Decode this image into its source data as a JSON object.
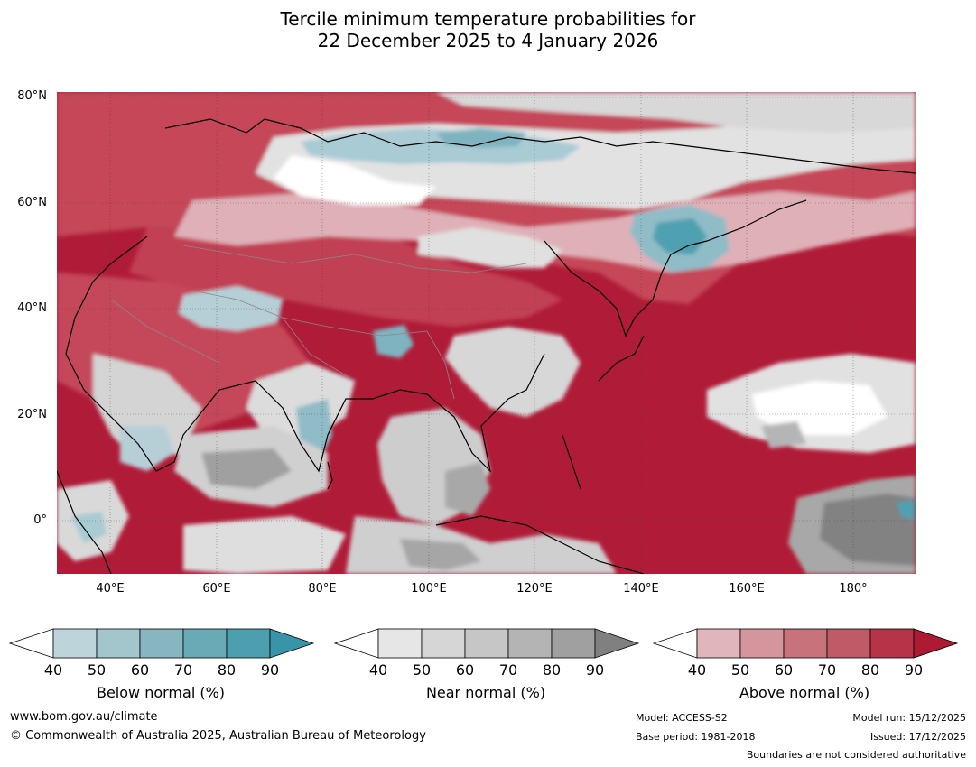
{
  "title": {
    "line1": "Tercile minimum temperature probabilities for",
    "line2": "22 December 2025 to 4 January 2026"
  },
  "map": {
    "projection": "equirectangular",
    "lon_range": [
      30,
      191
    ],
    "lat_range": [
      -10,
      81
    ],
    "colors": {
      "ocean_above": "#b01c38",
      "land_above": "#c74a5b",
      "pale_red": "#e1b3ba",
      "mid_red": "#d68a96",
      "near_light": "#e4e4e4",
      "near_mid": "#c6c6c6",
      "near_dark": "#8a8a8a",
      "below_light": "#b9d1d9",
      "below_mid": "#83b4c1",
      "below_dark": "#4a9eae",
      "coast": "#000000",
      "border": "#888888",
      "grid": "#555555"
    },
    "y_ticks": [
      "80°N",
      "60°N",
      "40°N",
      "20°N",
      "0°"
    ],
    "x_ticks": [
      "40°E",
      "60°E",
      "80°E",
      "100°E",
      "120°E",
      "140°E",
      "160°E",
      "180°"
    ]
  },
  "colorbars": {
    "below": {
      "title": "Below normal (%)",
      "labels": [
        "40",
        "50",
        "60",
        "70",
        "80",
        "90"
      ],
      "colors": [
        "#ffffff",
        "#bdd4db",
        "#a3c5cc",
        "#87b5c0",
        "#6aaab6",
        "#4d9fb0",
        "#3a94a8"
      ]
    },
    "near": {
      "title": "Near normal (%)",
      "labels": [
        "40",
        "50",
        "60",
        "70",
        "80",
        "90"
      ],
      "colors": [
        "#ffffff",
        "#e6e6e6",
        "#d6d6d6",
        "#c6c6c6",
        "#b4b4b4",
        "#a0a0a0",
        "#808080"
      ]
    },
    "above": {
      "title": "Above normal (%)",
      "labels": [
        "40",
        "50",
        "60",
        "70",
        "80",
        "90"
      ],
      "colors": [
        "#ffffff",
        "#e0b6bc",
        "#d4959d",
        "#c8727c",
        "#bf5b67",
        "#b73448",
        "#ac1a34"
      ]
    }
  },
  "footer": {
    "website": "www.bom.gov.au/climate",
    "copyright": "© Commonwealth of Australia 2025, Australian Bureau of Meteorology",
    "model": "Model: ACCESS-S2",
    "base_period": "Base period: 1981-2018",
    "model_run": "Model run: 15/12/2025",
    "issued": "Issued: 17/12/2025",
    "disclaimer": "Boundaries are not considered authoritative"
  }
}
